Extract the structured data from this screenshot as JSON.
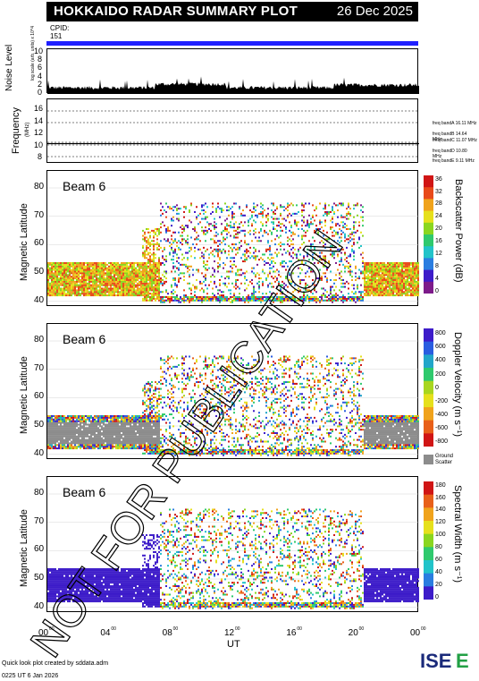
{
  "header": {
    "title": "HOKKAIDO RADAR SUMMARY PLOT",
    "date": "26 Dec 2025",
    "cpid_label": "CPID:",
    "cpid_value": "151"
  },
  "noise_panel": {
    "ylabel": "Noise Level",
    "ylabel_sub": "log scale (arb. units) x 10^4",
    "ticks": [
      "0",
      "2",
      "4",
      "6",
      "8",
      "10"
    ]
  },
  "freq_panel": {
    "ylabel": "Frequency",
    "unit": "(MHz)",
    "ticks": [
      "8",
      "10",
      "12",
      "14",
      "16"
    ],
    "bands": [
      "freq bandA 16.11 MHz",
      "freq bandB 14.64 MHz",
      "freq bandC 11.07 MHz",
      "freq bandD 10.80 MHz",
      "freq bandE 9.11 MHz"
    ]
  },
  "colors": {
    "bar": "#2020ff",
    "ground": "#8c8c8c",
    "power_scale": [
      "#7d1b8a",
      "#3d1cc9",
      "#2a7de0",
      "#22c3c9",
      "#2fc96d",
      "#8ad61f",
      "#e6e01c",
      "#f0a31c",
      "#e84a1a",
      "#d01515"
    ],
    "velocity_scale": [
      "#3d1cc9",
      "#2a5de0",
      "#22a6c9",
      "#2fc96d",
      "#a8d61f",
      "#e6e01c",
      "#f0a31c",
      "#e8601a",
      "#d01515"
    ],
    "width_scale": [
      "#3d1cc9",
      "#2a7de0",
      "#22c3c9",
      "#2fc96d",
      "#8ad61f",
      "#e6e01c",
      "#f0a31c",
      "#e8601a",
      "#d01515"
    ]
  },
  "watermark": "NOT FOR PUBLICATION",
  "footer": {
    "credit": "Quick look plot created by sddata.adm",
    "timestamp": "0225 UT  6 Jan 2026",
    "logo": "ISEE"
  },
  "chart_data": [
    {
      "type": "heatmap",
      "title": "Beam 6",
      "ylabel": "Magnetic Latitude",
      "ylim": [
        38,
        86
      ],
      "yticks": [
        "40",
        "50",
        "60",
        "70",
        "80"
      ],
      "colorbar_label": "Backscatter Power (dB)",
      "colorbar_ticks": [
        "0",
        "4",
        "8",
        "12",
        "16",
        "20",
        "24",
        "28",
        "32",
        "36"
      ]
    },
    {
      "type": "heatmap",
      "title": "Beam 6",
      "ylabel": "Magnetic Latitude",
      "ylim": [
        38,
        86
      ],
      "yticks": [
        "40",
        "50",
        "60",
        "70",
        "80"
      ],
      "colorbar_label": "Doppler Velocity (m s⁻¹)",
      "colorbar_ticks": [
        "800",
        "600",
        "400",
        "200",
        "0",
        "-200",
        "-400",
        "-600",
        "-800"
      ],
      "ground_label": "Ground Scatter"
    },
    {
      "type": "heatmap",
      "title": "Beam 6",
      "ylabel": "Magnetic Latitude",
      "ylim": [
        38,
        86
      ],
      "yticks": [
        "40",
        "50",
        "60",
        "70",
        "80"
      ],
      "colorbar_label": "Spectral Width (m s⁻¹)",
      "colorbar_ticks": [
        "0",
        "20",
        "40",
        "60",
        "80",
        "100",
        "120",
        "140",
        "160",
        "180"
      ]
    }
  ],
  "xaxis": {
    "label": "UT",
    "ticks": [
      "00",
      "04",
      "08",
      "12",
      "16",
      "20",
      "00"
    ],
    "tick_sup": "00"
  }
}
